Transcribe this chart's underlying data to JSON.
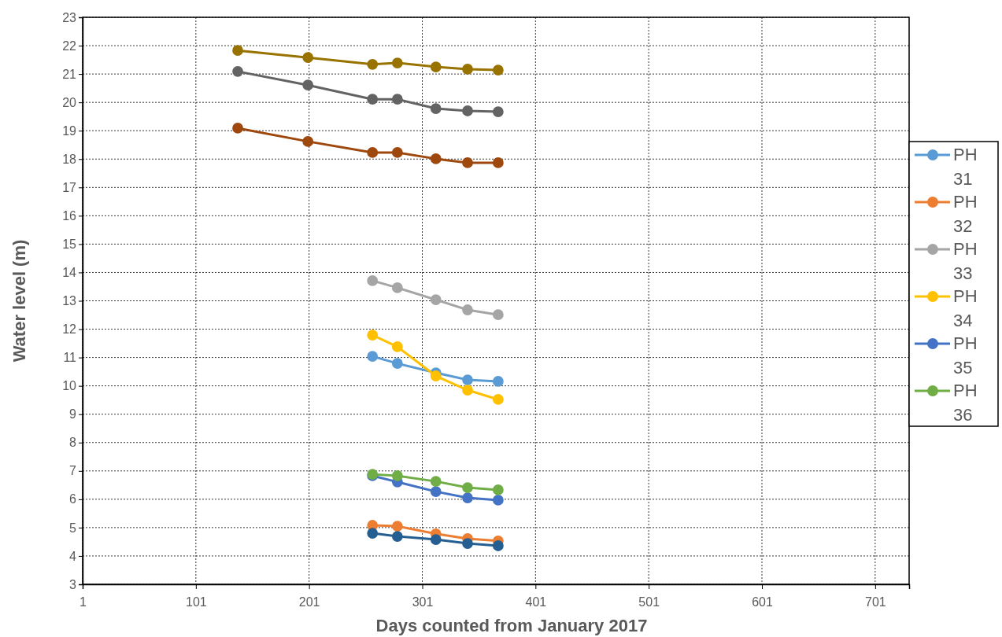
{
  "chart_data": {
    "type": "line",
    "xlabel": "Days counted from January 2017",
    "ylabel": "Water level (m)",
    "xlim": [
      1,
      731
    ],
    "ylim": [
      3,
      23
    ],
    "xticks": [
      1,
      101,
      201,
      301,
      401,
      501,
      601,
      701
    ],
    "yticks": [
      3,
      4,
      5,
      6,
      7,
      8,
      9,
      10,
      11,
      12,
      13,
      14,
      15,
      16,
      17,
      18,
      19,
      20,
      21,
      22,
      23
    ],
    "grid": true,
    "legend": "right",
    "marker": "circle",
    "line_style": "solid",
    "series": [
      {
        "name": "PH 31",
        "color": "#5b9bd5",
        "x": [
          257,
          279,
          313,
          341,
          368
        ],
        "values": [
          11.04,
          10.79,
          10.46,
          10.21,
          10.16
        ]
      },
      {
        "name": "PH 32",
        "color": "#ed7d31",
        "x": [
          257,
          279,
          313,
          341,
          368
        ],
        "values": [
          5.08,
          5.05,
          4.78,
          4.61,
          4.53
        ]
      },
      {
        "name": "PH 33",
        "color": "#a5a5a5",
        "x": [
          257,
          279,
          313,
          341,
          368
        ],
        "values": [
          13.71,
          13.46,
          13.04,
          12.68,
          12.51
        ]
      },
      {
        "name": "PH 34",
        "color": "#ffc000",
        "x": [
          257,
          279,
          313,
          341,
          368
        ],
        "values": [
          11.79,
          11.38,
          10.35,
          9.85,
          9.52
        ]
      },
      {
        "name": "PH 35",
        "color": "#4472c4",
        "x": [
          257,
          279,
          313,
          341,
          368
        ],
        "values": [
          6.83,
          6.61,
          6.27,
          6.05,
          5.97
        ]
      },
      {
        "name": "PH 36",
        "color": "#70ad47",
        "x": [
          257,
          279,
          313,
          341,
          368
        ],
        "values": [
          6.88,
          6.83,
          6.63,
          6.41,
          6.33
        ]
      },
      {
        "color": "#255e91",
        "x": [
          257,
          279,
          313,
          341,
          368
        ],
        "values": [
          4.8,
          4.69,
          4.58,
          4.44,
          4.36
        ]
      },
      {
        "color": "#9e480e",
        "x": [
          138,
          200,
          257,
          279,
          313,
          341,
          368
        ],
        "values": [
          19.09,
          18.62,
          18.23,
          18.23,
          18.01,
          17.87,
          17.87
        ]
      },
      {
        "color": "#636363",
        "x": [
          138,
          200,
          257,
          279,
          313,
          341,
          368
        ],
        "values": [
          21.09,
          20.61,
          20.11,
          20.11,
          19.78,
          19.7,
          19.67
        ]
      },
      {
        "color": "#997300",
        "x": [
          138,
          200,
          257,
          279,
          313,
          341,
          368
        ],
        "values": [
          21.83,
          21.58,
          21.34,
          21.39,
          21.25,
          21.17,
          21.14
        ]
      }
    ]
  }
}
